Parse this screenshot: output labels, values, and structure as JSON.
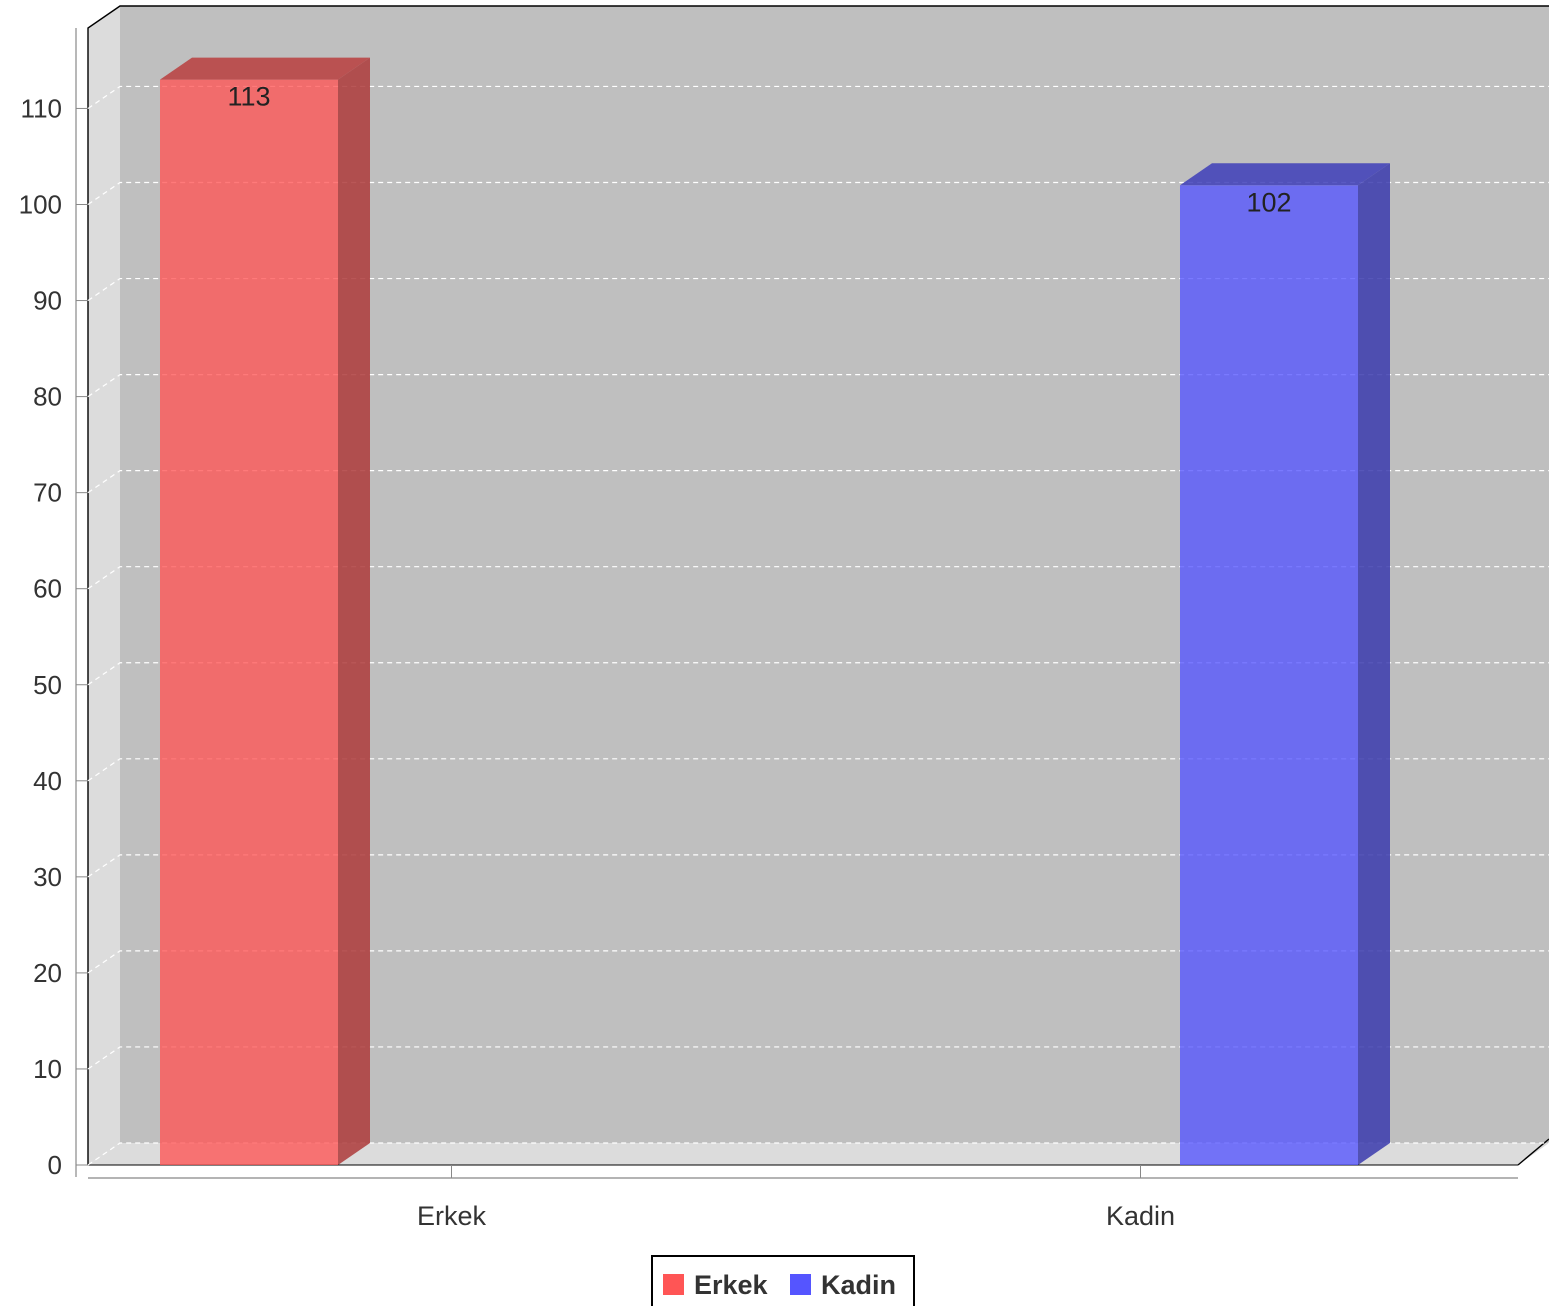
{
  "chart_data": {
    "type": "bar",
    "title": "",
    "xlabel": "",
    "ylabel": "",
    "categories": [
      "Erkek",
      "Kadin"
    ],
    "values": [
      113,
      102
    ],
    "series": [
      {
        "name": "Erkek",
        "color": "#ff5555",
        "values": [
          113,
          null
        ]
      },
      {
        "name": "Kadin",
        "color": "#5555ff",
        "values": [
          null,
          102
        ]
      }
    ],
    "ylim": [
      0,
      110
    ],
    "yticks": [
      0,
      10,
      20,
      30,
      40,
      50,
      60,
      70,
      80,
      90,
      100,
      110
    ],
    "grid": true,
    "three_d": true,
    "legend": {
      "position": "bottom-center",
      "entries": [
        "Erkek",
        "Kadin"
      ]
    }
  }
}
